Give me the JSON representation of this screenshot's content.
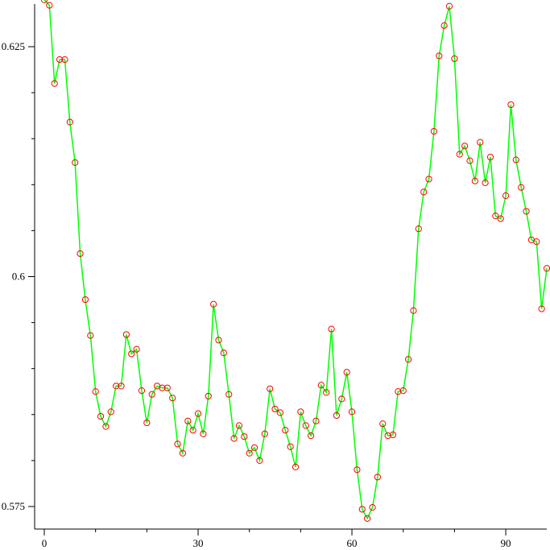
{
  "chart_data": {
    "type": "line",
    "title": "",
    "xlabel": "",
    "ylabel": "",
    "xlim": [
      0,
      98
    ],
    "ylim": [
      0.575,
      0.6255
    ],
    "x_ticks": [
      0,
      30,
      60,
      90
    ],
    "x_tick_labels": [
      "0",
      "30",
      "60",
      "90"
    ],
    "x_minor_ticks": [
      10,
      20,
      40,
      50,
      70,
      80
    ],
    "y_ticks": [
      0.575,
      0.6,
      0.625
    ],
    "y_tick_labels": [
      "0.575",
      "0.6",
      "0.625"
    ],
    "y_minor_ticks": [
      0.58,
      0.585,
      0.59,
      0.595,
      0.605,
      0.61,
      0.615,
      0.62
    ],
    "grid": false,
    "line_color": "#00ff00",
    "marker_color": "#ff0000",
    "series": [
      {
        "x": [
          0,
          1,
          2,
          3,
          4,
          5,
          6,
          7,
          8,
          9,
          10,
          11,
          12,
          13,
          14,
          15,
          16,
          17,
          18,
          19,
          20,
          21,
          22,
          23,
          24,
          25,
          26,
          27,
          28,
          29,
          30,
          31,
          32,
          33,
          34,
          35,
          36,
          37,
          38,
          39,
          40,
          41,
          42,
          43,
          44,
          45,
          46,
          47,
          48,
          49,
          50,
          51,
          52,
          53,
          54,
          55,
          56,
          57,
          58,
          59,
          60,
          61,
          62,
          63,
          64,
          65,
          66,
          67,
          68,
          69,
          70,
          71,
          72,
          73,
          74,
          75,
          76,
          77,
          78,
          79,
          80,
          81,
          82,
          83,
          84,
          85,
          86,
          87,
          88,
          89,
          90,
          91,
          92,
          93,
          94,
          95,
          96,
          97,
          98
        ],
        "values": [
          0.6301,
          0.6295,
          0.621,
          0.6236,
          0.6236,
          0.6168,
          0.6124,
          0.6025,
          0.5975,
          0.5936,
          0.5875,
          0.5848,
          0.5837,
          0.5853,
          0.5881,
          0.5881,
          0.5937,
          0.5916,
          0.5921,
          0.5876,
          0.5841,
          0.5872,
          0.5881,
          0.5879,
          0.5879,
          0.5868,
          0.5818,
          0.5808,
          0.5843,
          0.5833,
          0.5851,
          0.5829,
          0.587,
          0.597,
          0.5931,
          0.5917,
          0.5872,
          0.5824,
          0.5838,
          0.5826,
          0.5808,
          0.5814,
          0.58,
          0.5829,
          0.5878,
          0.5856,
          0.5852,
          0.5833,
          0.5815,
          0.5793,
          0.5853,
          0.5838,
          0.5827,
          0.5843,
          0.5882,
          0.5874,
          0.5943,
          0.5849,
          0.5867,
          0.5896,
          0.5853,
          0.579,
          0.5747,
          0.5737,
          0.5749,
          0.5782,
          0.584,
          0.5827,
          0.5828,
          0.5875,
          0.5876,
          0.591,
          0.5963,
          0.6052,
          0.6092,
          0.6106,
          0.6158,
          0.624,
          0.6273,
          0.6294,
          0.6237,
          0.6133,
          0.6142,
          0.6126,
          0.6104,
          0.6146,
          0.6102,
          0.613,
          0.6066,
          0.6063,
          0.6088,
          0.6187,
          0.6127,
          0.6097,
          0.6071,
          0.604,
          0.6038,
          0.5965,
          0.6009
        ]
      }
    ]
  }
}
